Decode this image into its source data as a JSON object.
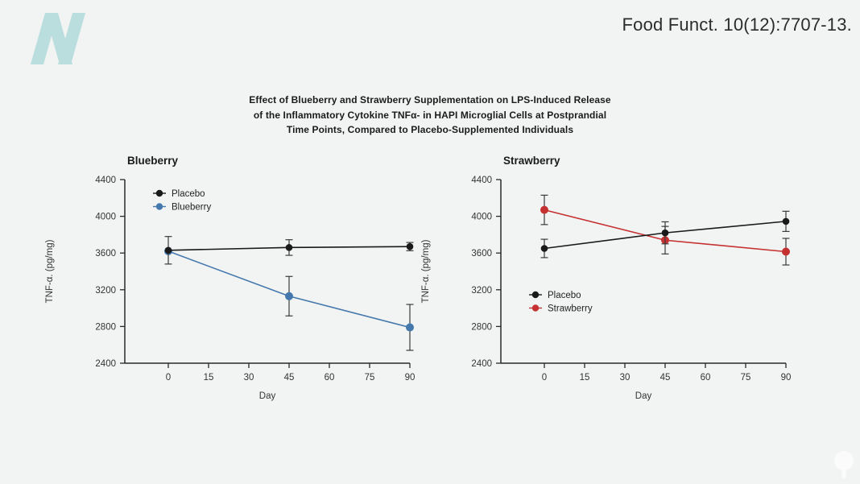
{
  "header": {
    "citation": "Food Funct. 10(12):7707-13."
  },
  "logo": {
    "name": "nutritionfacts-n-logo",
    "color": "#b9dedd"
  },
  "figure_title": {
    "lines": [
      "Effect of Blueberry and Strawberry Supplementation on LPS-Induced Release",
      "of the Inflammatory Cytokine TNFα- in HAPI Microglial Cells at Postprandial",
      "Time Points, Compared to Placebo-Supplemented Individuals"
    ]
  },
  "colors": {
    "background": "#f2f4f3",
    "axis": "#2a2a2a",
    "tick_text": "#333333",
    "placebo": "#1a1a1a",
    "blueberry": "#4578ad",
    "strawberry": "#c53030",
    "error_bar": "#3a3a3a"
  },
  "chart_data": [
    {
      "type": "line",
      "title": "Blueberry",
      "xlabel": "Day",
      "ylabel": "TNF-α. (pg/mg)",
      "x": [
        0,
        45,
        90
      ],
      "xticks": [
        0,
        15,
        30,
        45,
        60,
        75,
        90
      ],
      "yticks": [
        2400,
        2800,
        3200,
        3600,
        4000,
        4400
      ],
      "ylim": [
        2400,
        4400
      ],
      "xlim": [
        0,
        90
      ],
      "grid": false,
      "legend_position": "top-left",
      "series": [
        {
          "name": "Placebo",
          "color": "#1a1a1a",
          "values": [
            3630,
            3660,
            3670
          ],
          "errors": [
            150,
            85,
            45
          ]
        },
        {
          "name": "Blueberry",
          "color": "#4578ad",
          "values": [
            3620,
            3130,
            2790
          ],
          "errors": [
            0,
            215,
            250
          ]
        }
      ]
    },
    {
      "type": "line",
      "title": "Strawberry",
      "xlabel": "Day",
      "ylabel": "TNF-α. (pg/mg)",
      "x": [
        0,
        45,
        90
      ],
      "xticks": [
        0,
        15,
        30,
        45,
        60,
        75,
        90
      ],
      "yticks": [
        2400,
        2800,
        3200,
        3600,
        4000,
        4400
      ],
      "ylim": [
        2400,
        4400
      ],
      "xlim": [
        0,
        90
      ],
      "grid": false,
      "legend_position": "middle-left",
      "series": [
        {
          "name": "Placebo",
          "color": "#1a1a1a",
          "values": [
            3650,
            3820,
            3945
          ],
          "errors": [
            100,
            120,
            110
          ]
        },
        {
          "name": "Strawberry",
          "color": "#c53030",
          "values": [
            4070,
            3740,
            3615
          ],
          "errors": [
            160,
            150,
            145
          ]
        }
      ]
    }
  ]
}
